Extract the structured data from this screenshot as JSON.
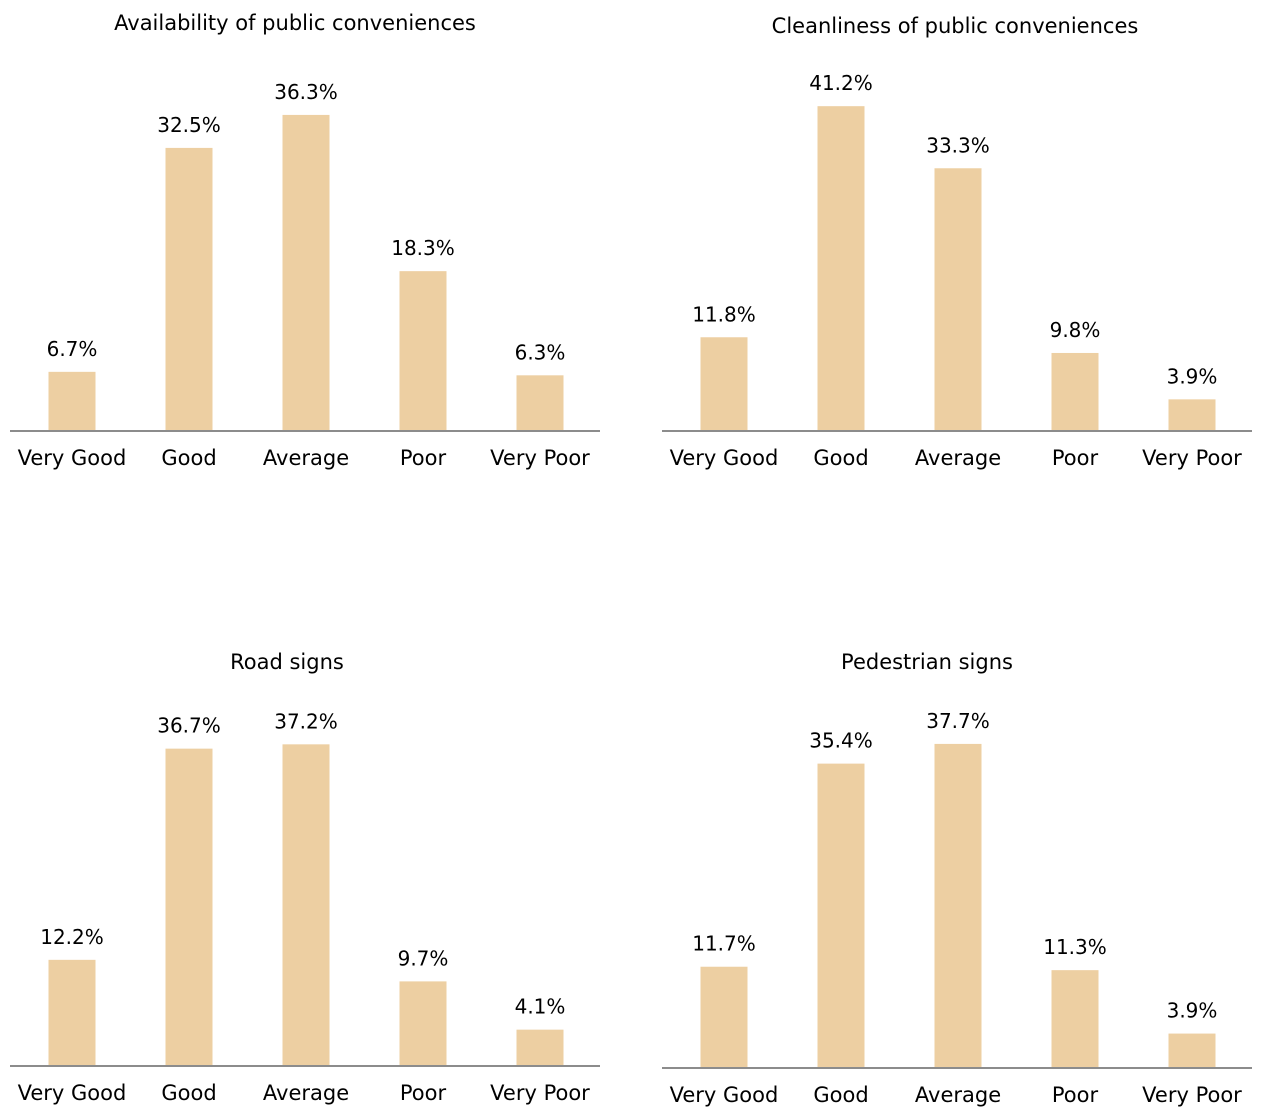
{
  "colors": {
    "bar": "#EDCFA2",
    "axis": "#8C8C8C",
    "text": "#000000",
    "background": "#FFFFFF"
  },
  "chart_data": [
    {
      "type": "bar",
      "title": "Availability of public conveniences",
      "categories": [
        "Very Good",
        "Good",
        "Average",
        "Poor",
        "Very Poor"
      ],
      "values": [
        6.7,
        32.5,
        36.3,
        18.3,
        6.3
      ],
      "value_labels": [
        "6.7%",
        "32.5%",
        "36.3%",
        "18.3%",
        "6.3%"
      ],
      "xlabel": "",
      "ylabel": "",
      "grid": false,
      "legend": "none"
    },
    {
      "type": "bar",
      "title": "Cleanliness of public conveniences",
      "categories": [
        "Very Good",
        "Good",
        "Average",
        "Poor",
        "Very Poor"
      ],
      "values": [
        11.8,
        41.2,
        33.3,
        9.8,
        3.9
      ],
      "value_labels": [
        "11.8%",
        "41.2%",
        "33.3%",
        "9.8%",
        "3.9%"
      ],
      "xlabel": "",
      "ylabel": "",
      "grid": false,
      "legend": "none"
    },
    {
      "type": "bar",
      "title": "Road signs",
      "categories": [
        "Very Good",
        "Good",
        "Average",
        "Poor",
        "Very Poor"
      ],
      "values": [
        12.2,
        36.7,
        37.2,
        9.7,
        4.1
      ],
      "value_labels": [
        "12.2%",
        "36.7%",
        "37.2%",
        "9.7%",
        "4.1%"
      ],
      "xlabel": "",
      "ylabel": "",
      "grid": false,
      "legend": "none"
    },
    {
      "type": "bar",
      "title": "Pedestrian signs",
      "categories": [
        "Very Good",
        "Good",
        "Average",
        "Poor",
        "Very Poor"
      ],
      "values": [
        11.7,
        35.4,
        37.7,
        11.3,
        3.9
      ],
      "value_labels": [
        "11.7%",
        "35.4%",
        "37.7%",
        "11.3%",
        "3.9%"
      ],
      "xlabel": "",
      "ylabel": "",
      "grid": false,
      "legend": "none"
    }
  ]
}
